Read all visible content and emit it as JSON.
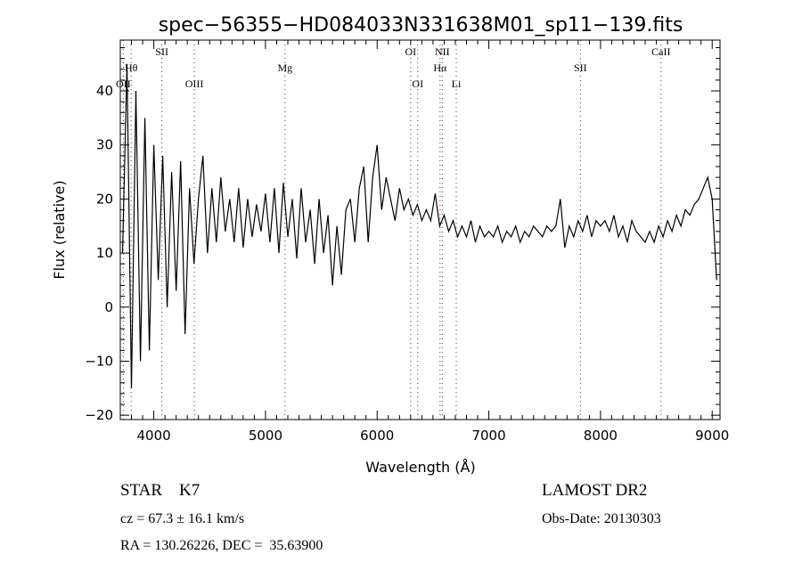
{
  "chart_data": {
    "type": "line",
    "title": "spec−56355−HD084033N331638M01_sp11−139.fits",
    "xlabel": "Wavelength (Å)",
    "ylabel": "Flux (relative)",
    "xlim": [
      3700,
      9070
    ],
    "ylim": [
      -20.8,
      49.4
    ],
    "xticks": [
      4000,
      5000,
      6000,
      7000,
      8000,
      9000
    ],
    "yticks": [
      -20,
      -10,
      0,
      10,
      20,
      30,
      40
    ],
    "ytick_labels": [
      "−20",
      "−10",
      "0",
      "10",
      "20",
      "30",
      "40"
    ],
    "grid": false,
    "series": [
      {
        "name": "spectrum",
        "x_start": 3720,
        "x_step": 40,
        "values": [
          10,
          45,
          -15,
          40,
          -10,
          35,
          -8,
          30,
          5,
          28,
          0,
          25,
          3,
          27,
          -5,
          22,
          8,
          20,
          28,
          10,
          22,
          12,
          24,
          14,
          20,
          12,
          22,
          11,
          20,
          13,
          19,
          14,
          21,
          12,
          22,
          10,
          23,
          13,
          20,
          9,
          22,
          12,
          18,
          8,
          20,
          10,
          17,
          4,
          15,
          6,
          18,
          20,
          12,
          22,
          26,
          12,
          24,
          30,
          18,
          24,
          20,
          16,
          22,
          18,
          20,
          17,
          19,
          16,
          18,
          16,
          21,
          15,
          17,
          14,
          16,
          13,
          15,
          13,
          16,
          12,
          15,
          13,
          14,
          13,
          15,
          12,
          14,
          13,
          15,
          12,
          14,
          13,
          15,
          14,
          13,
          15,
          14,
          15,
          20,
          11,
          15,
          13,
          16,
          14,
          17,
          13,
          16,
          15,
          16,
          14,
          17,
          13,
          15,
          12,
          16,
          14,
          13,
          12,
          14,
          12,
          15,
          13,
          16,
          14,
          17,
          15,
          18,
          17,
          19,
          20,
          22,
          24,
          20,
          5
        ]
      }
    ],
    "line_markers": [
      {
        "label": "OII",
        "wavelength": 3727,
        "row": 3
      },
      {
        "label": "Hθ",
        "wavelength": 3797,
        "row": 2
      },
      {
        "label": "SII",
        "wavelength": 4072,
        "row": 1
      },
      {
        "label": "OIII",
        "wavelength": 4363,
        "row": 3
      },
      {
        "label": "Mg",
        "wavelength": 5175,
        "row": 2
      },
      {
        "label": "OI",
        "wavelength": 6300,
        "row": 1
      },
      {
        "label": "OI",
        "wavelength": 6363,
        "row": 3
      },
      {
        "label": "NII",
        "wavelength": 6583,
        "row": 1
      },
      {
        "label": "Hα",
        "wavelength": 6563,
        "row": 2
      },
      {
        "label": "Li",
        "wavelength": 6708,
        "row": 3
      },
      {
        "label": "SII",
        "wavelength": 7820,
        "row": 2
      },
      {
        "label": "CaII",
        "wavelength": 8542,
        "row": 1
      }
    ],
    "marker_color": "#8b1a1a"
  },
  "info": {
    "class": "STAR    K7",
    "survey": "LAMOST DR2",
    "cz": "cz = 67.3 ± 16.1 km/s",
    "obs_date": "Obs-Date: 20130303",
    "coords": "RA = 130.26226, DEC =  35.63900"
  }
}
